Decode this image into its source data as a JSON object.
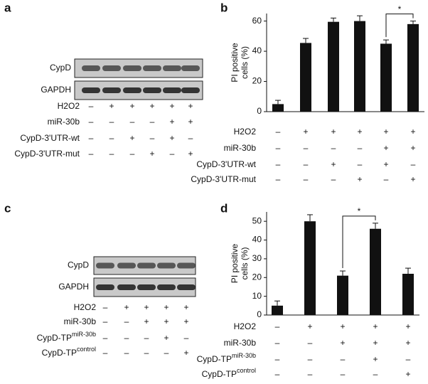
{
  "panel_labels": [
    "a",
    "b",
    "c",
    "d"
  ],
  "blots": [
    {
      "bands": [
        "CypD",
        "GAPDH"
      ]
    },
    {
      "bands": [
        "CypD",
        "GAPDH"
      ]
    }
  ],
  "treatments": [
    [
      {
        "label": "H2O2",
        "marks": [
          "–",
          "+",
          "+",
          "+",
          "+",
          "+"
        ]
      },
      {
        "label": "miR-30b",
        "marks": [
          "–",
          "–",
          "–",
          "–",
          "+",
          "+"
        ]
      },
      {
        "label": "CypD-3'UTR-wt",
        "marks": [
          "–",
          "–",
          "+",
          "–",
          "+",
          "–"
        ]
      },
      {
        "label": "CypD-3'UTR-mut",
        "marks": [
          "–",
          "–",
          "–",
          "+",
          "–",
          "+"
        ]
      }
    ],
    [
      {
        "label": "H2O2",
        "marks": [
          "–",
          "+",
          "+",
          "+",
          "+",
          "+"
        ]
      },
      {
        "label": "miR-30b",
        "marks": [
          "–",
          "–",
          "–",
          "–",
          "+",
          "+"
        ]
      },
      {
        "label": "CypD-3'UTR-wt",
        "marks": [
          "–",
          "–",
          "+",
          "–",
          "+",
          "–"
        ]
      },
      {
        "label": "CypD-3'UTR-mut",
        "marks": [
          "–",
          "–",
          "–",
          "+",
          "–",
          "+"
        ]
      }
    ],
    [
      {
        "label": "H2O2",
        "marks": [
          "–",
          "+",
          "+",
          "+",
          "+"
        ]
      },
      {
        "label": "miR-30b",
        "marks": [
          "–",
          "–",
          "+",
          "+",
          "+"
        ]
      },
      {
        "label": "CypD-TP",
        "sup": "miR-30b",
        "marks": [
          "–",
          "–",
          "–",
          "+",
          "–"
        ]
      },
      {
        "label": "CypD-TP",
        "sup": "control",
        "marks": [
          "–",
          "–",
          "–",
          "–",
          "+"
        ]
      }
    ],
    [
      {
        "label": "H2O2",
        "marks": [
          "–",
          "+",
          "+",
          "+",
          "+"
        ]
      },
      {
        "label": "miR-30b",
        "marks": [
          "–",
          "–",
          "+",
          "+",
          "+"
        ]
      },
      {
        "label": "CypD-TP",
        "sup": "miR-30b",
        "marks": [
          "–",
          "–",
          "–",
          "+",
          "–"
        ]
      },
      {
        "label": "CypD-TP",
        "sup": "control",
        "marks": [
          "–",
          "–",
          "–",
          "–",
          "+"
        ]
      }
    ]
  ],
  "chart_data": [
    {
      "type": "bar",
      "ylabel": [
        "PI positive",
        "cells (%)"
      ],
      "color": "#111111",
      "values": [
        5,
        45.5,
        59.5,
        60,
        45,
        58
      ],
      "errors": [
        2.5,
        3,
        2.5,
        3.5,
        2.5,
        2
      ],
      "ylim": [
        0,
        65
      ],
      "yticks": [
        0,
        20,
        40,
        60
      ],
      "annotation": "*"
    },
    {
      "type": "bar",
      "ylabel": [
        "PI positive",
        "cells (%)"
      ],
      "color": "#111111",
      "values": [
        5,
        50,
        21,
        46,
        22
      ],
      "errors": [
        2.5,
        3.5,
        2.5,
        3,
        3
      ],
      "ylim": [
        0,
        55
      ],
      "yticks": [
        0,
        10,
        20,
        30,
        40,
        50
      ],
      "annotation": "*"
    }
  ]
}
